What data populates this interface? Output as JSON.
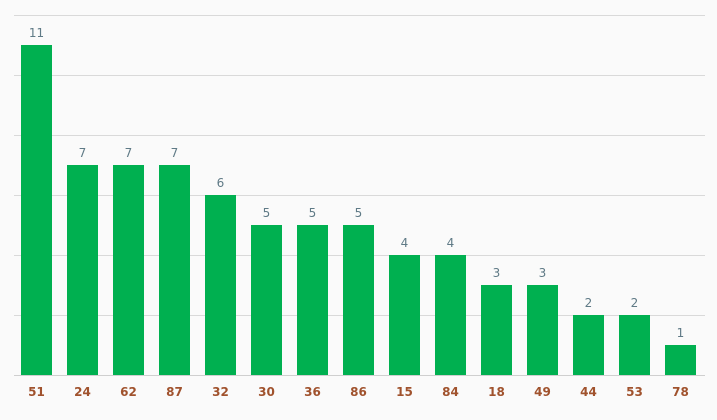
{
  "chart_data": {
    "type": "bar",
    "categories": [
      "51",
      "24",
      "62",
      "87",
      "32",
      "30",
      "36",
      "86",
      "15",
      "84",
      "18",
      "49",
      "44",
      "53",
      "78"
    ],
    "values": [
      11,
      7,
      7,
      7,
      6,
      5,
      5,
      5,
      4,
      4,
      3,
      3,
      2,
      2,
      1
    ],
    "ylim": [
      0,
      12
    ],
    "grid": true,
    "legend": "none",
    "bar_color": "#00b050",
    "value_label_color": "#5f7a86",
    "category_label_color": "#a0522d"
  }
}
